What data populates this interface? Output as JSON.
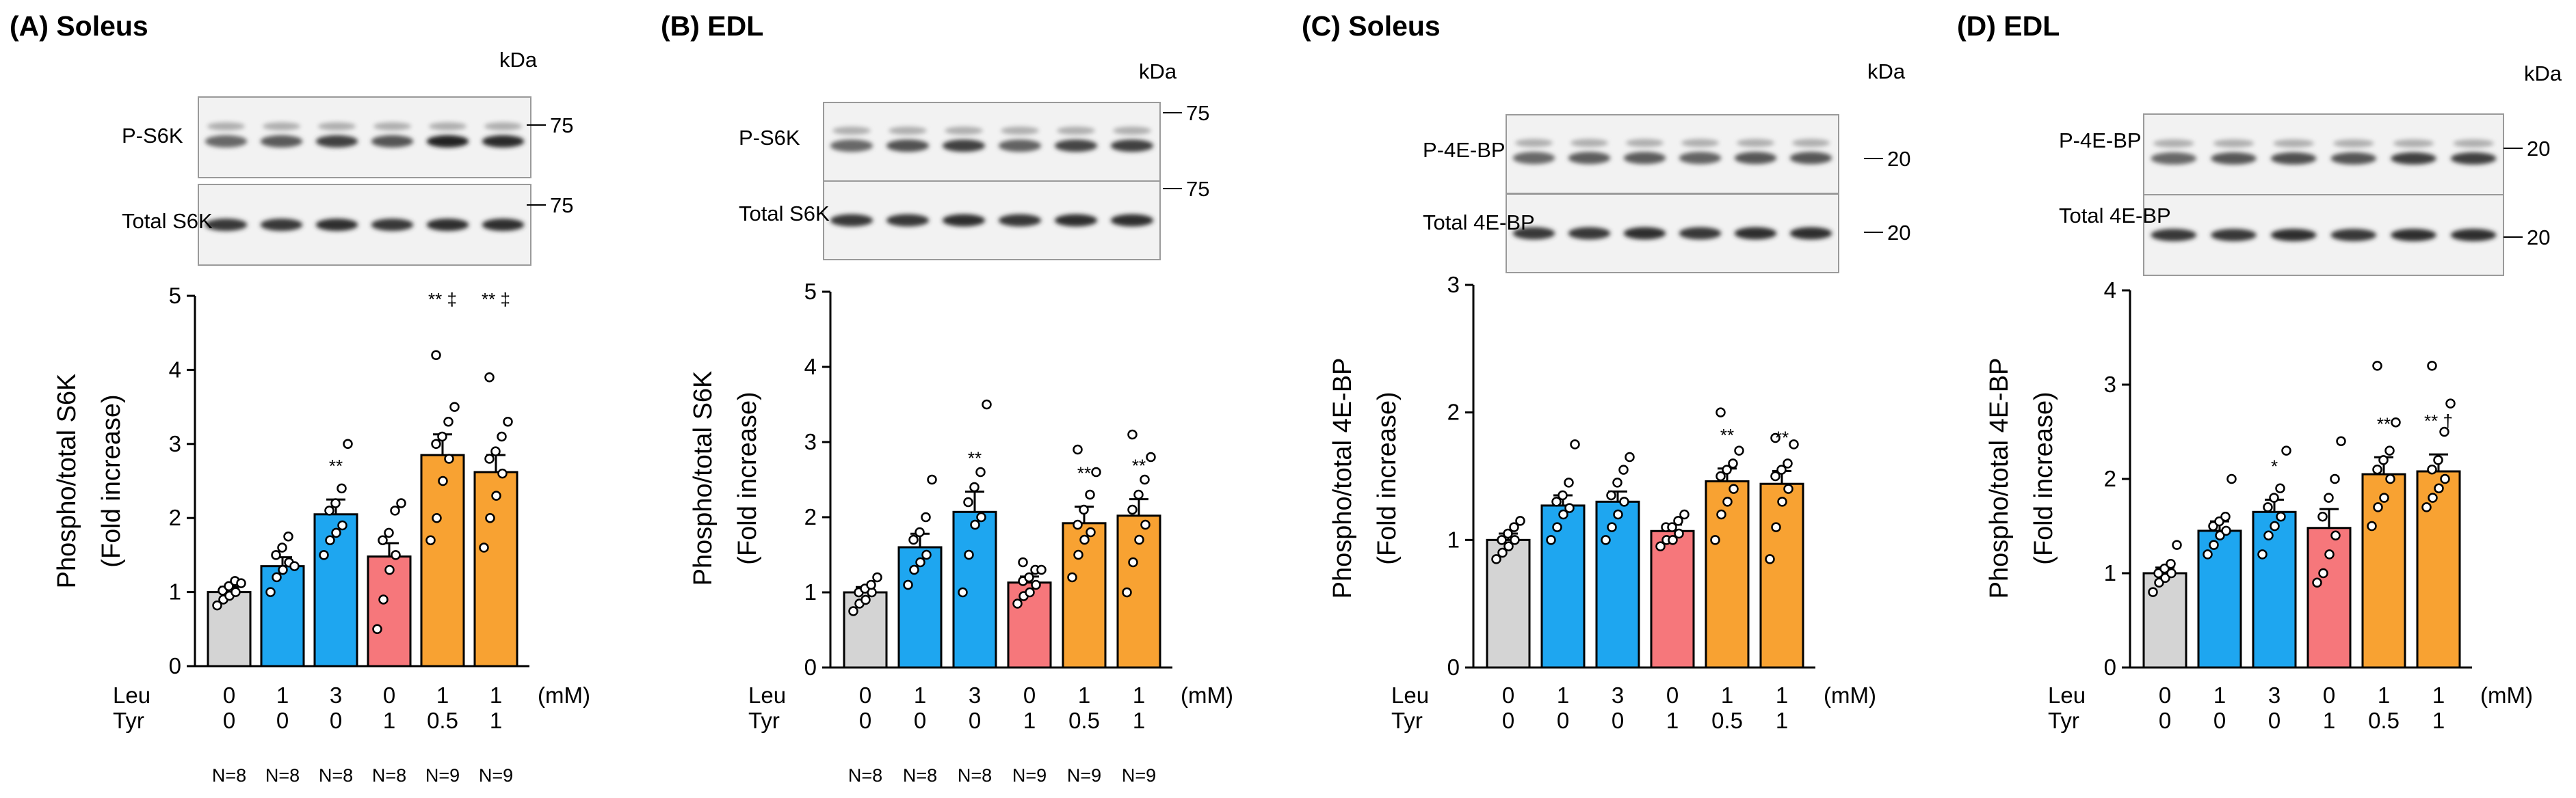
{
  "figure": {
    "unit_label": "(mM)",
    "kda_label": "kDa",
    "row_labels": {
      "leu": "Leu",
      "tyr": "Tyr"
    },
    "colors": {
      "grey": "#d4d4d4",
      "blue": "#1ea6f0",
      "pink": "#f6777b",
      "orange": "#f8a232"
    }
  },
  "chart_data": [
    {
      "type": "bar",
      "panel_title": "(A) Soleus",
      "ylabel": "Phospho/total S6K",
      "ylabel2": "(Fold increase)",
      "ylim": [
        0,
        5
      ],
      "yticks": [
        "0",
        "1",
        "2",
        "3",
        "4",
        "5"
      ],
      "leu": [
        "0",
        "1",
        "3",
        "0",
        "1",
        "1"
      ],
      "tyr": [
        "0",
        "0",
        "0",
        "1",
        "0.5",
        "1"
      ],
      "n_labels": [
        "N=8",
        "N=8",
        "N=8",
        "N=8",
        "N=9",
        "N=9"
      ],
      "values": [
        1.0,
        1.35,
        2.05,
        1.48,
        2.85,
        2.62
      ],
      "errors": [
        0.07,
        0.12,
        0.2,
        0.18,
        0.28,
        0.23
      ],
      "annotations": [
        "",
        "",
        "**",
        "",
        "** ‡",
        "** ‡"
      ],
      "points": [
        [
          0.82,
          0.9,
          0.95,
          1.0,
          1.02,
          1.08,
          1.15,
          1.12
        ],
        [
          1.0,
          1.2,
          1.3,
          1.4,
          1.5,
          1.6,
          1.75,
          1.35
        ],
        [
          1.5,
          1.7,
          1.8,
          1.9,
          2.1,
          2.2,
          2.4,
          3.0
        ],
        [
          0.5,
          0.9,
          1.3,
          1.5,
          1.7,
          1.8,
          2.1,
          2.2
        ],
        [
          1.7,
          2.0,
          2.5,
          2.8,
          3.0,
          3.1,
          3.3,
          3.5,
          4.2
        ],
        [
          1.6,
          2.0,
          2.3,
          2.6,
          2.8,
          2.9,
          3.1,
          3.3,
          3.9
        ]
      ],
      "blot_labels": [
        "P-S6K",
        "Total S6K"
      ],
      "mw_markers": [
        "75",
        "75"
      ]
    },
    {
      "type": "bar",
      "panel_title": "(B) EDL",
      "ylabel": "Phospho/total S6K",
      "ylabel2": "(Fold increase)",
      "ylim": [
        0,
        5
      ],
      "yticks": [
        "0",
        "1",
        "2",
        "3",
        "4",
        "5"
      ],
      "leu": [
        "0",
        "1",
        "3",
        "0",
        "1",
        "1"
      ],
      "tyr": [
        "0",
        "0",
        "0",
        "1",
        "0.5",
        "1"
      ],
      "n_labels": [
        "N=8",
        "N=8",
        "N=8",
        "N=9",
        "N=9",
        "N=9"
      ],
      "values": [
        1.0,
        1.6,
        2.07,
        1.13,
        1.92,
        2.02
      ],
      "errors": [
        0.07,
        0.18,
        0.27,
        0.08,
        0.22,
        0.22
      ],
      "annotations": [
        "",
        "",
        "**",
        "",
        "**",
        "**"
      ],
      "points": [
        [
          0.75,
          0.85,
          0.9,
          1.0,
          1.0,
          1.05,
          1.1,
          1.2
        ],
        [
          1.1,
          1.3,
          1.4,
          1.5,
          1.7,
          1.8,
          2.0,
          2.5
        ],
        [
          1.0,
          1.5,
          1.9,
          2.0,
          2.2,
          2.4,
          2.6,
          3.5
        ],
        [
          0.85,
          0.95,
          1.0,
          1.1,
          1.15,
          1.2,
          1.3,
          1.3,
          1.4
        ],
        [
          1.2,
          1.5,
          1.7,
          1.8,
          1.9,
          2.1,
          2.3,
          2.6,
          2.9
        ],
        [
          1.0,
          1.4,
          1.7,
          1.9,
          2.1,
          2.3,
          2.5,
          2.8,
          3.1
        ]
      ],
      "blot_labels": [
        "P-S6K",
        "Total S6K"
      ],
      "mw_markers": [
        "75",
        "75"
      ]
    },
    {
      "type": "bar",
      "panel_title": "(C) Soleus",
      "ylabel": "Phospho/total 4E-BP",
      "ylabel2": "(Fold increase)",
      "ylim": [
        0,
        3
      ],
      "yticks": [
        "0",
        "1",
        "2",
        "3"
      ],
      "leu": [
        "0",
        "1",
        "3",
        "0",
        "1",
        "1"
      ],
      "tyr": [
        "0",
        "0",
        "0",
        "1",
        "0.5",
        "1"
      ],
      "n_labels": [],
      "values": [
        1.0,
        1.27,
        1.3,
        1.07,
        1.46,
        1.44
      ],
      "errors": [
        0.05,
        0.08,
        0.08,
        0.05,
        0.1,
        0.1
      ],
      "annotations": [
        "",
        "",
        "",
        "",
        "**",
        "**"
      ],
      "points": [
        [
          0.85,
          0.9,
          0.95,
          1.0,
          1.0,
          1.05,
          1.1,
          1.15
        ],
        [
          1.0,
          1.1,
          1.2,
          1.25,
          1.3,
          1.35,
          1.45,
          1.75
        ],
        [
          1.0,
          1.1,
          1.2,
          1.3,
          1.35,
          1.45,
          1.55,
          1.65
        ],
        [
          0.95,
          1.0,
          1.0,
          1.05,
          1.1,
          1.1,
          1.15,
          1.2
        ],
        [
          1.0,
          1.2,
          1.3,
          1.4,
          1.5,
          1.55,
          1.6,
          1.7,
          2.0
        ],
        [
          0.85,
          1.1,
          1.3,
          1.4,
          1.5,
          1.55,
          1.6,
          1.75,
          1.8
        ]
      ],
      "blot_labels": [
        "P-4E-BP",
        "Total 4E-BP"
      ],
      "mw_markers": [
        "20",
        "20"
      ]
    },
    {
      "type": "bar",
      "panel_title": "(D) EDL",
      "ylabel": "Phospho/total 4E-BP",
      "ylabel2": "(Fold increase)",
      "ylim": [
        0,
        4
      ],
      "yticks": [
        "0",
        "1",
        "2",
        "3",
        "4"
      ],
      "leu": [
        "0",
        "1",
        "3",
        "0",
        "1",
        "1"
      ],
      "tyr": [
        "0",
        "0",
        "0",
        "1",
        "0.5",
        "1"
      ],
      "n_labels": [],
      "values": [
        1.0,
        1.45,
        1.65,
        1.48,
        2.05,
        2.08
      ],
      "errors": [
        0.06,
        0.1,
        0.13,
        0.2,
        0.18,
        0.18
      ],
      "annotations": [
        "",
        "",
        "*",
        "",
        "**",
        "** †"
      ],
      "points": [
        [
          0.8,
          0.9,
          0.95,
          1.0,
          1.0,
          1.05,
          1.1,
          1.3
        ],
        [
          1.2,
          1.3,
          1.4,
          1.45,
          1.5,
          1.55,
          1.6,
          2.0
        ],
        [
          1.2,
          1.4,
          1.5,
          1.6,
          1.7,
          1.8,
          1.9,
          2.3
        ],
        [
          0.9,
          1.0,
          1.2,
          1.4,
          1.6,
          1.8,
          2.0,
          2.4
        ],
        [
          1.5,
          1.7,
          1.8,
          2.0,
          2.1,
          2.2,
          2.3,
          2.6,
          3.2
        ],
        [
          1.7,
          1.8,
          1.9,
          2.0,
          2.1,
          2.2,
          2.5,
          2.8,
          3.2
        ]
      ],
      "blot_labels": [
        "P-4E-BP",
        "Total 4E-BP"
      ],
      "mw_markers": [
        "20",
        "20"
      ]
    }
  ]
}
